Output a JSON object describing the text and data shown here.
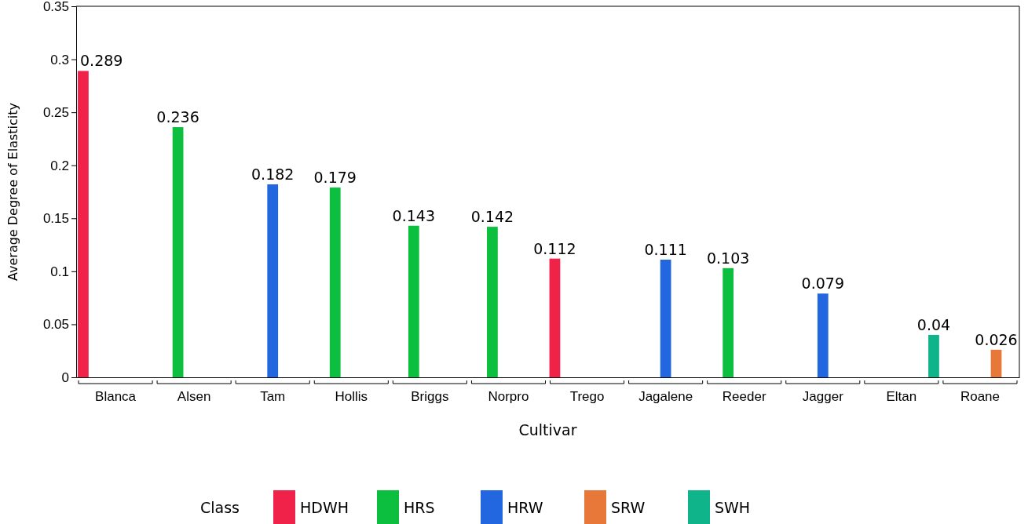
{
  "chart_data": {
    "type": "bar",
    "xlabel": "Cultivar",
    "ylabel": "Average Degree of Elasticity",
    "legend_title": "Class",
    "legend": "bottom",
    "data_labels": true,
    "categories": [
      "Blanca",
      "Alsen",
      "Tam",
      "Hollis",
      "Briggs",
      "Norpro",
      "Trego",
      "Jagalene",
      "Reeder",
      "Jagger",
      "Eltan",
      "Roane"
    ],
    "ylim": [
      0,
      0.35
    ],
    "yticks": [
      0,
      0.05,
      0.1,
      0.15,
      0.2,
      0.25,
      0.3,
      0.35
    ],
    "series": [
      {
        "name": "HDWH",
        "color": "#f0224a",
        "values": [
          0.289,
          null,
          null,
          null,
          null,
          null,
          0.112,
          null,
          null,
          null,
          null,
          null
        ]
      },
      {
        "name": "HRS",
        "color": "#0dbf3f",
        "values": [
          null,
          0.236,
          null,
          0.179,
          0.143,
          0.142,
          null,
          null,
          0.103,
          null,
          null,
          null
        ]
      },
      {
        "name": "HRW",
        "color": "#2266e0",
        "values": [
          null,
          null,
          0.182,
          null,
          null,
          null,
          null,
          0.111,
          null,
          0.079,
          null,
          null
        ]
      },
      {
        "name": "SRW",
        "color": "#e8783a",
        "values": [
          null,
          null,
          null,
          null,
          null,
          null,
          null,
          null,
          null,
          null,
          null,
          0.026
        ]
      },
      {
        "name": "SWH",
        "color": "#10b48a",
        "values": [
          null,
          null,
          null,
          null,
          null,
          null,
          null,
          null,
          null,
          null,
          0.04,
          null
        ]
      }
    ]
  }
}
